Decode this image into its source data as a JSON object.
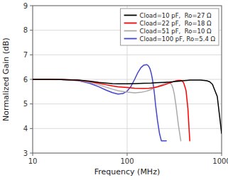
{
  "chart_data": {
    "type": "line",
    "xlabel": "Frequency (MHz)",
    "ylabel": "Normalized Gain (dB)",
    "log": "x",
    "grid": true,
    "legend": "upper right",
    "xlim": [
      10,
      1000
    ],
    "xticks": [
      10,
      100,
      1000
    ],
    "ylim": [
      3,
      9
    ],
    "yticks": [
      3,
      4,
      5,
      6,
      7,
      8,
      9
    ],
    "series": [
      {
        "name": "Cload=10 pF,  Ro=27 Ω",
        "color": "#000000",
        "x": [
          10,
          15,
          20,
          30,
          40,
          50,
          60,
          70,
          80,
          100,
          120,
          150,
          180,
          200,
          220,
          250,
          280,
          300,
          320,
          340,
          360,
          380,
          400,
          430,
          460,
          490,
          520,
          560,
          600,
          650,
          700,
          750,
          800,
          900,
          1000
        ],
        "values": [
          6.0,
          6.0,
          5.99,
          5.97,
          5.93,
          5.88,
          5.85,
          5.83,
          5.82,
          5.82,
          5.83,
          5.84,
          5.85,
          5.86,
          5.87,
          5.88,
          5.89,
          5.9,
          5.91,
          5.92,
          5.93,
          5.94,
          5.95,
          5.96,
          5.97,
          5.97,
          5.97,
          5.97,
          5.97,
          5.96,
          5.94,
          5.9,
          5.8,
          5.3,
          3.8
        ]
      },
      {
        "name": "Cload=22 pF,  Ro=18 Ω",
        "color": "#ff0000",
        "x": [
          10,
          15,
          20,
          30,
          40,
          50,
          60,
          70,
          80,
          100,
          120,
          150,
          170,
          190,
          210,
          230,
          250,
          270,
          290,
          310,
          330,
          340,
          350,
          360,
          370,
          380,
          390,
          400,
          420,
          440,
          460
        ],
        "values": [
          6.0,
          6.0,
          5.99,
          5.97,
          5.91,
          5.84,
          5.78,
          5.73,
          5.7,
          5.67,
          5.64,
          5.63,
          5.64,
          5.66,
          5.7,
          5.74,
          5.78,
          5.83,
          5.87,
          5.91,
          5.94,
          5.95,
          5.96,
          5.96,
          5.96,
          5.94,
          5.9,
          5.82,
          5.55,
          4.8,
          3.5
        ]
      },
      {
        "name": "Cload=51 pF,  Ro=10 Ω",
        "color": "#aaaaaa",
        "x": [
          10,
          15,
          20,
          30,
          40,
          50,
          60,
          70,
          80,
          100,
          120,
          140,
          160,
          180,
          200,
          220,
          240,
          255,
          265,
          275,
          285,
          295,
          305,
          315,
          330,
          350,
          370
        ],
        "values": [
          6.0,
          6.0,
          5.99,
          5.96,
          5.88,
          5.78,
          5.68,
          5.6,
          5.54,
          5.48,
          5.45,
          5.47,
          5.52,
          5.59,
          5.67,
          5.74,
          5.8,
          5.84,
          5.86,
          5.87,
          5.85,
          5.79,
          5.65,
          5.42,
          4.9,
          4.1,
          3.5
        ]
      },
      {
        "name": "Cload=100 pF, Ro=5.4 Ω",
        "color": "#4444cc",
        "x": [
          10,
          15,
          20,
          30,
          40,
          50,
          60,
          70,
          80,
          90,
          100,
          110,
          120,
          130,
          140,
          150,
          160,
          165,
          170,
          175,
          180,
          185,
          190,
          195,
          200,
          210,
          220,
          230,
          240,
          250,
          260
        ],
        "values": [
          6.0,
          6.0,
          5.99,
          5.95,
          5.84,
          5.7,
          5.56,
          5.46,
          5.4,
          5.42,
          5.52,
          5.72,
          6.0,
          6.28,
          6.48,
          6.58,
          6.6,
          6.58,
          6.52,
          6.42,
          6.25,
          6.02,
          5.72,
          5.38,
          4.95,
          4.3,
          3.8,
          3.5,
          3.5,
          3.5,
          3.5
        ]
      }
    ]
  }
}
